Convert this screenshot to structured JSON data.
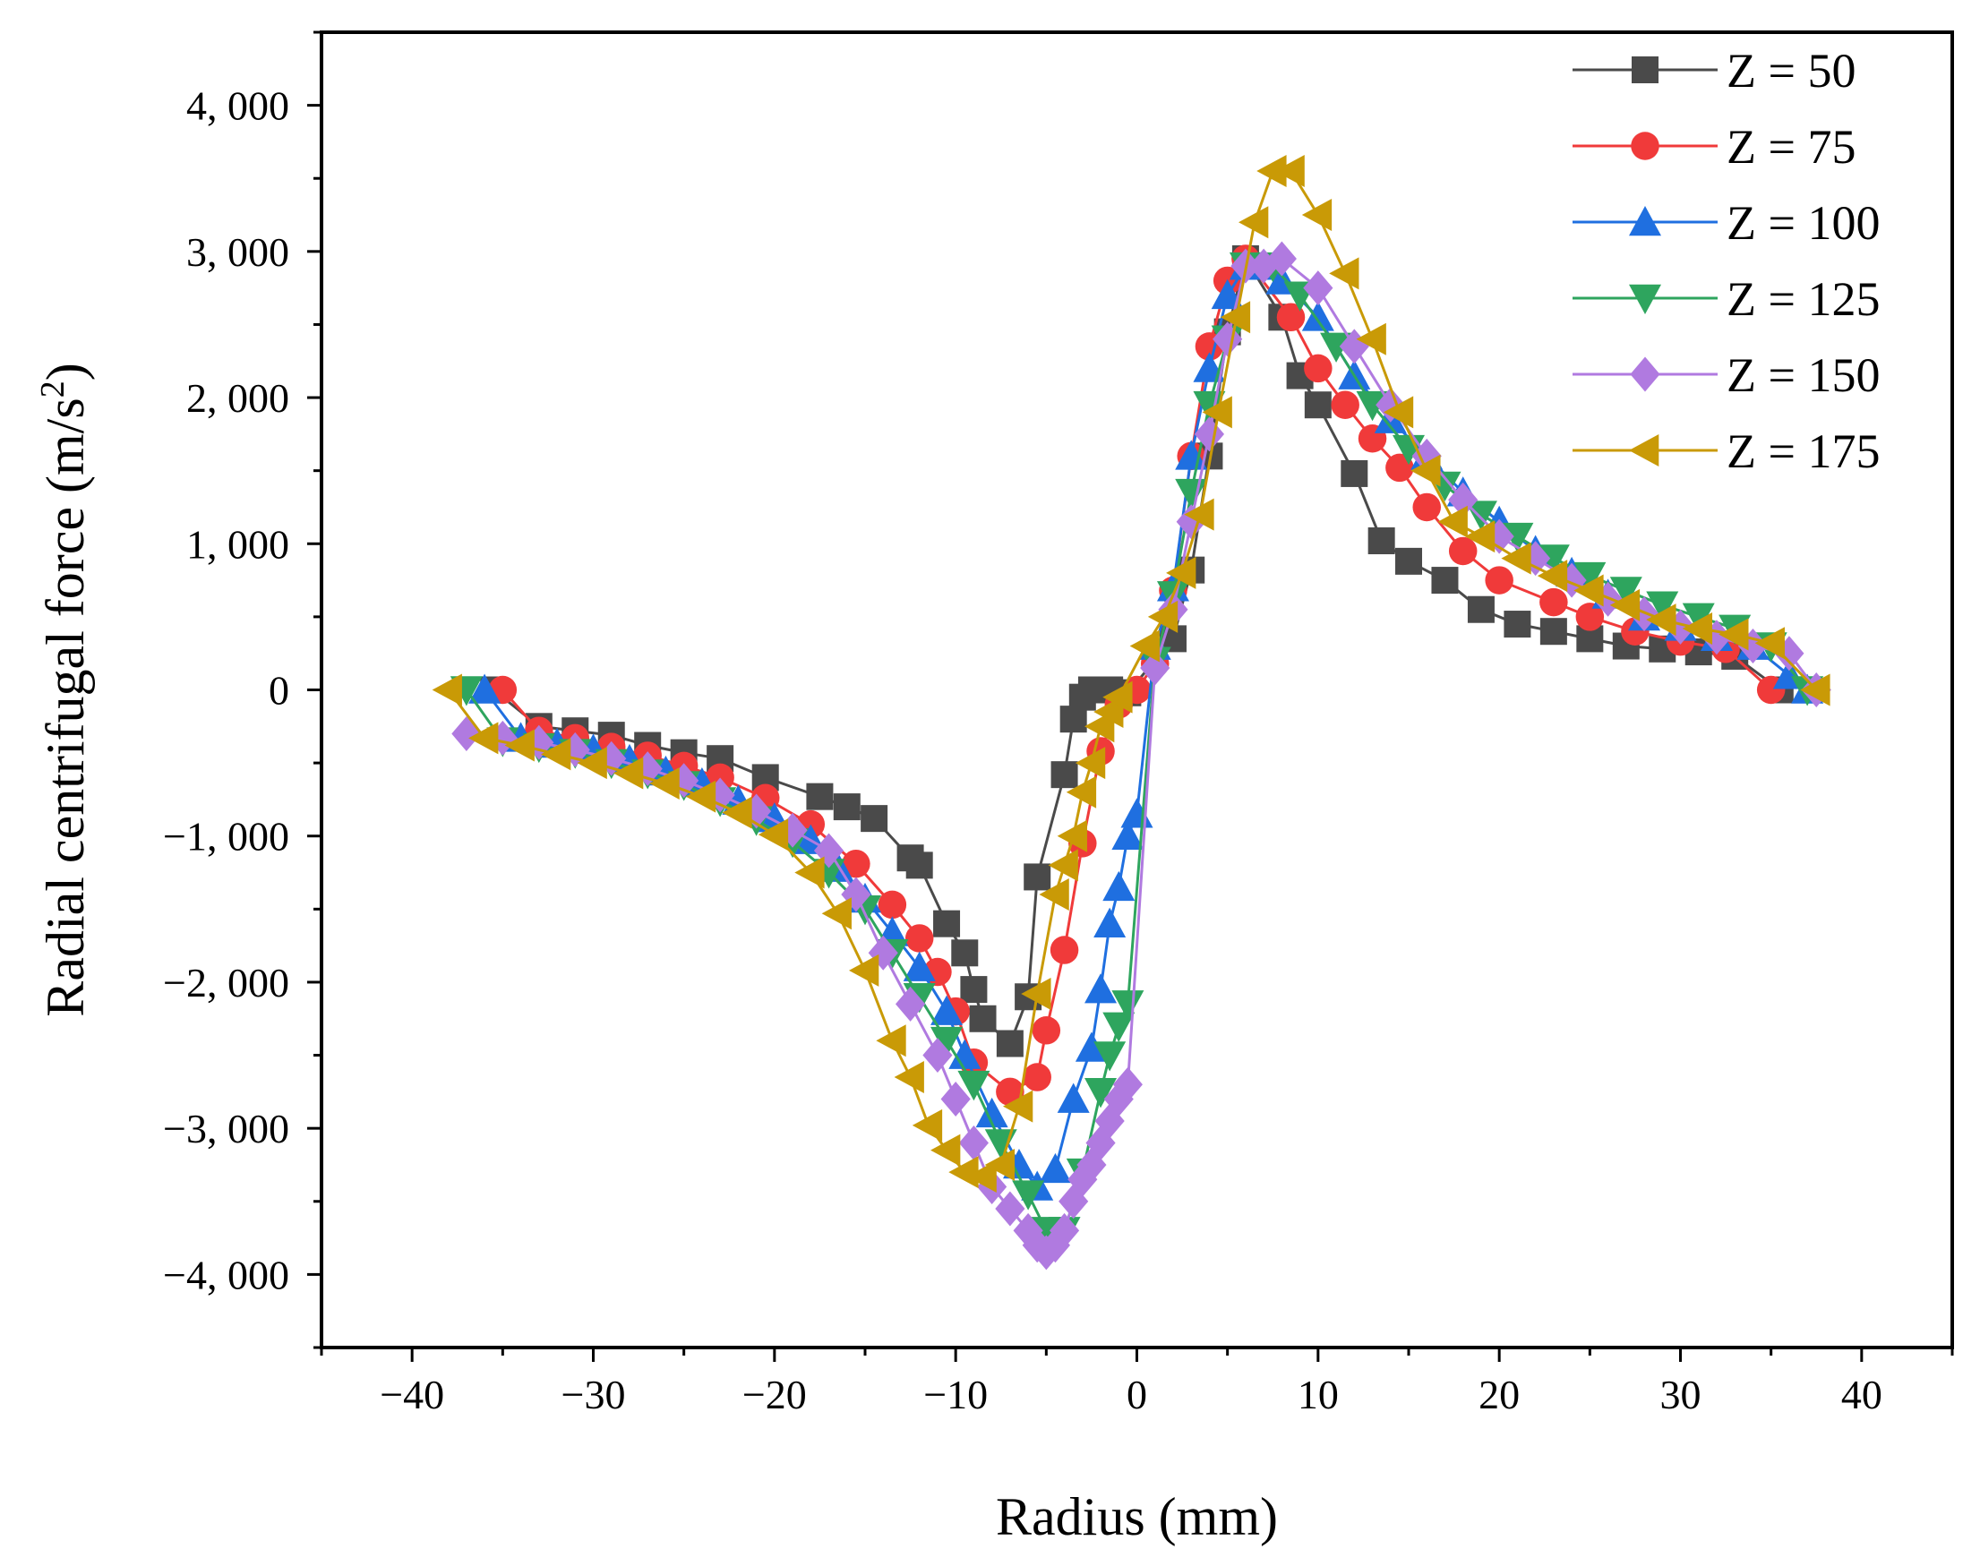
{
  "chart_data": {
    "type": "line",
    "title": "",
    "xlabel": "Radius (mm)",
    "ylabel_main": "Radial centrifugal force (m/s",
    "ylabel_sup": "2",
    "ylabel_close": ")",
    "xlim": [
      -45,
      45
    ],
    "ylim": [
      -4500,
      4500
    ],
    "x_ticks": [
      -40,
      -30,
      -20,
      -10,
      0,
      10,
      20,
      30,
      40
    ],
    "x_tick_labels": [
      "−40",
      "−30",
      "−20",
      "−10",
      "0",
      "10",
      "20",
      "30",
      "40"
    ],
    "y_ticks": [
      -4000,
      -3000,
      -2000,
      -1000,
      0,
      1000,
      2000,
      3000,
      4000
    ],
    "y_tick_labels": [
      "−4, 000",
      "−3, 000",
      "−2, 000",
      "−1, 000",
      "0",
      "1, 000",
      "2, 000",
      "3, 000",
      "4, 000"
    ],
    "grid": false,
    "legend_position": "top-right",
    "series": [
      {
        "name": "Z = 50",
        "color": "#4a4a4a",
        "marker": "square",
        "x": [
          -35.5,
          -33,
          -31,
          -29,
          -27,
          -25,
          -23,
          -20.5,
          -17.5,
          -16,
          -14.5,
          -12.5,
          -12,
          -10.5,
          -9.5,
          -9,
          -8.5,
          -7,
          -6,
          -5.5,
          -4,
          -3.5,
          -3,
          -2.5,
          -2,
          -1.5,
          -1,
          -0.5,
          2,
          3,
          4,
          5,
          6,
          8,
          9,
          10,
          12,
          13.5,
          15,
          17,
          19,
          21,
          23,
          25,
          27,
          29,
          31,
          33,
          35.5
        ],
        "y": [
          0,
          -250,
          -280,
          -310,
          -380,
          -430,
          -470,
          -600,
          -730,
          -800,
          -880,
          -1150,
          -1200,
          -1600,
          -1800,
          -2050,
          -2250,
          -2420,
          -2100,
          -1280,
          -580,
          -200,
          -50,
          0,
          0,
          0,
          -20,
          -20,
          350,
          820,
          1600,
          2450,
          2950,
          2550,
          2150,
          1950,
          1480,
          1020,
          880,
          750,
          550,
          450,
          400,
          350,
          300,
          280,
          260,
          230,
          0
        ]
      },
      {
        "name": "Z = 75",
        "color": "#f03a3a",
        "marker": "circle",
        "x": [
          -35,
          -33,
          -31,
          -29,
          -27,
          -25,
          -23,
          -20.5,
          -18,
          -15.5,
          -13.5,
          -12,
          -11,
          -10,
          -9,
          -7,
          -5.5,
          -5,
          -4,
          -3,
          -2,
          -1,
          0,
          1,
          2,
          3,
          4,
          5,
          6,
          8.5,
          10,
          11.5,
          13,
          14.5,
          16,
          18,
          20,
          23,
          25,
          27.5,
          30,
          32.5,
          35
        ],
        "y": [
          0,
          -280,
          -330,
          -390,
          -450,
          -520,
          -600,
          -740,
          -920,
          -1190,
          -1470,
          -1700,
          -1930,
          -2200,
          -2550,
          -2750,
          -2650,
          -2330,
          -1780,
          -1050,
          -420,
          -100,
          0,
          180,
          680,
          1600,
          2350,
          2800,
          2950,
          2550,
          2200,
          1950,
          1720,
          1520,
          1250,
          950,
          750,
          600,
          500,
          400,
          330,
          280,
          0
        ]
      },
      {
        "name": "Z = 100",
        "color": "#1f6fe0",
        "marker": "triangle-up",
        "x": [
          -36,
          -34,
          -32,
          -30,
          -28,
          -26,
          -24,
          -22,
          -20,
          -18,
          -16.5,
          -15,
          -13.5,
          -12,
          -10.5,
          -9.5,
          -8,
          -6.5,
          -5.5,
          -4.5,
          -3.5,
          -2.5,
          -2,
          -1.5,
          -1,
          -0.5,
          0,
          1,
          2,
          3,
          4,
          5,
          6,
          7,
          8,
          10,
          12,
          14,
          16,
          18,
          20,
          22,
          24,
          26,
          28,
          30,
          32,
          34,
          36,
          37
        ],
        "y": [
          0,
          -330,
          -370,
          -410,
          -480,
          -560,
          -640,
          -760,
          -880,
          -1030,
          -1220,
          -1430,
          -1660,
          -1900,
          -2200,
          -2500,
          -2900,
          -3250,
          -3400,
          -3280,
          -2800,
          -2450,
          -2050,
          -1600,
          -1350,
          -1000,
          -850,
          300,
          700,
          1600,
          2200,
          2700,
          2900,
          2900,
          2800,
          2550,
          2150,
          1850,
          1600,
          1350,
          1150,
          950,
          800,
          650,
          500,
          430,
          360,
          300,
          100,
          0
        ]
      },
      {
        "name": "Z = 125",
        "color": "#2ea55e",
        "marker": "triangle-down",
        "x": [
          -37,
          -35,
          -33,
          -31,
          -29,
          -27,
          -25,
          -23,
          -21,
          -19,
          -17,
          -15,
          -13.5,
          -12,
          -10.5,
          -9,
          -7.5,
          -6,
          -5,
          -4,
          -3,
          -2,
          -1.5,
          -1,
          -0.5,
          1,
          2,
          3,
          4,
          5,
          6,
          7.5,
          9,
          11,
          13,
          15,
          17,
          19,
          21,
          23,
          25,
          27,
          29,
          31,
          33,
          35,
          37
        ],
        "y": [
          0,
          -350,
          -390,
          -430,
          -500,
          -570,
          -650,
          -760,
          -890,
          -1040,
          -1250,
          -1500,
          -1800,
          -2100,
          -2400,
          -2700,
          -3100,
          -3450,
          -3700,
          -3700,
          -3300,
          -2750,
          -2500,
          -2300,
          -2150,
          200,
          650,
          1350,
          1950,
          2400,
          2900,
          2900,
          2700,
          2350,
          1950,
          1650,
          1400,
          1200,
          1050,
          900,
          780,
          680,
          580,
          500,
          420,
          300,
          0
        ]
      },
      {
        "name": "Z = 150",
        "color": "#b07ae0",
        "marker": "diamond",
        "x": [
          -37,
          -35,
          -33,
          -31,
          -29,
          -27,
          -25,
          -23,
          -21,
          -19,
          -17,
          -15.5,
          -14,
          -12.5,
          -11,
          -10,
          -9,
          -8,
          -7,
          -6,
          -5.5,
          -5,
          -4.5,
          -4,
          -3.5,
          -3,
          -2.5,
          -2,
          -1.5,
          -1,
          -0.5,
          1,
          2,
          3,
          4,
          5,
          6,
          7,
          8,
          10,
          12,
          14,
          16,
          18,
          20,
          22,
          24,
          26,
          28,
          30,
          32,
          34,
          36,
          37.5
        ],
        "y": [
          -300,
          -330,
          -360,
          -410,
          -470,
          -540,
          -620,
          -720,
          -830,
          -960,
          -1100,
          -1400,
          -1800,
          -2150,
          -2500,
          -2800,
          -3100,
          -3400,
          -3550,
          -3700,
          -3800,
          -3850,
          -3800,
          -3700,
          -3500,
          -3350,
          -3250,
          -3100,
          -2950,
          -2800,
          -2700,
          150,
          550,
          1150,
          1750,
          2400,
          2900,
          2900,
          2950,
          2750,
          2350,
          1950,
          1600,
          1300,
          1050,
          900,
          750,
          620,
          520,
          430,
          360,
          300,
          250,
          0
        ]
      },
      {
        "name": "Z = 175",
        "color": "#c99a06",
        "marker": "triangle-left",
        "x": [
          -38,
          -36,
          -34,
          -32,
          -30,
          -28,
          -26,
          -24,
          -22,
          -20,
          -18,
          -16.5,
          -15,
          -13.5,
          -12.5,
          -11.5,
          -10.5,
          -9.5,
          -8.5,
          -7.5,
          -6.5,
          -5.5,
          -4.5,
          -4,
          -3.5,
          -3,
          -2.5,
          -2,
          -1.5,
          -1,
          0.5,
          1.5,
          2.5,
          3.5,
          4.5,
          5.5,
          6.5,
          7.5,
          8.5,
          10,
          11.5,
          13,
          14.5,
          16,
          17.5,
          19,
          21,
          23,
          25,
          27,
          29,
          31,
          33,
          35,
          37.5
        ],
        "y": [
          0,
          -330,
          -380,
          -440,
          -500,
          -570,
          -640,
          -730,
          -840,
          -990,
          -1250,
          -1530,
          -1920,
          -2400,
          -2650,
          -2980,
          -3150,
          -3300,
          -3330,
          -3250,
          -2850,
          -2080,
          -1400,
          -1200,
          -1000,
          -700,
          -500,
          -250,
          -150,
          -50,
          300,
          500,
          800,
          1200,
          1900,
          2550,
          3200,
          3550,
          3550,
          3250,
          2850,
          2400,
          1900,
          1500,
          1150,
          1050,
          900,
          780,
          680,
          580,
          480,
          420,
          380,
          320,
          0
        ]
      }
    ]
  }
}
